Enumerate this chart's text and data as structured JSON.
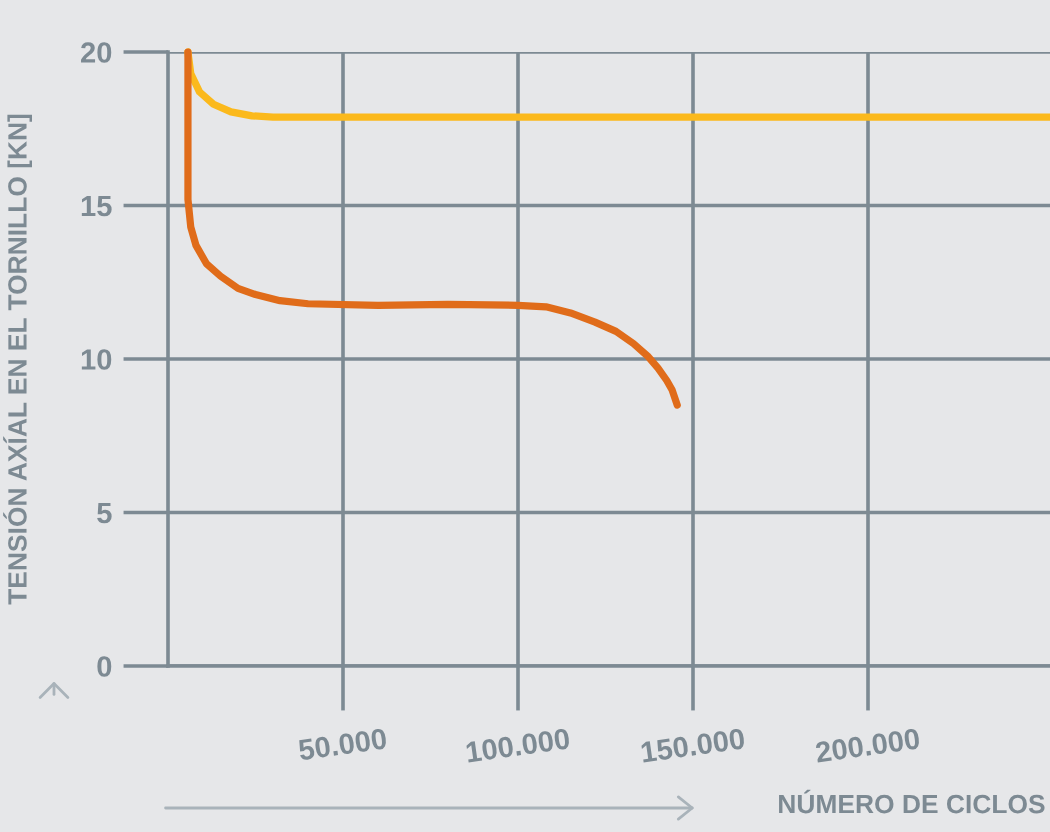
{
  "chart_data": {
    "type": "line",
    "xlabel": "NÚMERO DE CICLOS",
    "ylabel": "TENSIÓN AXÍAL EN EL TORNILLO [KN]",
    "xlim": [
      0,
      252000
    ],
    "ylim": [
      0,
      20
    ],
    "xticks": [
      {
        "value": 50000,
        "label": "50.000"
      },
      {
        "value": 100000,
        "label": "100.000"
      },
      {
        "value": 150000,
        "label": "150.000"
      },
      {
        "value": 200000,
        "label": "200.000"
      }
    ],
    "yticks": [
      0,
      5,
      10,
      15,
      20
    ],
    "grid": true,
    "line_style": "solid",
    "marker": "none",
    "series": [
      {
        "color": "#fbb91c",
        "x": [
          5700,
          6500,
          9000,
          13000,
          18000,
          24000,
          30000,
          60000,
          100000,
          150000,
          200000,
          252000
        ],
        "values": [
          20,
          19.3,
          18.7,
          18.3,
          18.05,
          17.92,
          17.88,
          17.88,
          17.88,
          17.88,
          17.88,
          17.88
        ]
      },
      {
        "color": "#e06c1a",
        "x": [
          5700,
          5700,
          6500,
          8000,
          11000,
          15000,
          20000,
          25000,
          32000,
          40000,
          60000,
          80000,
          100000,
          108000,
          115000,
          122000,
          128000,
          133000,
          137000,
          140000,
          142500,
          144000,
          145500
        ],
        "values": [
          20,
          15.2,
          14.3,
          13.7,
          13.1,
          12.7,
          12.3,
          12.1,
          11.9,
          11.8,
          11.75,
          11.78,
          11.75,
          11.7,
          11.5,
          11.2,
          10.9,
          10.5,
          10.1,
          9.7,
          9.3,
          9.0,
          8.5
        ]
      }
    ]
  }
}
